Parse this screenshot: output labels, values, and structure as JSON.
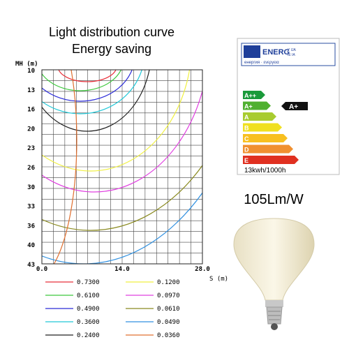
{
  "title": [
    "Light distribution curve",
    "Energy saving"
  ],
  "chart": {
    "y_axis_label": "MH (m)",
    "x_axis_label": "S (m)",
    "y_tick_labels": [
      "10",
      "13",
      "16",
      "20",
      "23",
      "26",
      "30",
      "33",
      "36",
      "40",
      "43"
    ],
    "x_tick_labels": [
      "0.0",
      "14.0",
      "28.0"
    ],
    "legend": [
      {
        "label": "0.7300",
        "color": "#e8303a"
      },
      {
        "label": "0.6100",
        "color": "#3cc83c"
      },
      {
        "label": "0.4900",
        "color": "#2a2ad8"
      },
      {
        "label": "0.3600",
        "color": "#20c8d8"
      },
      {
        "label": "0.2400",
        "color": "#222222"
      },
      {
        "label": "0.1200",
        "color": "#f0f040"
      },
      {
        "label": "0.0970",
        "color": "#e040e0"
      },
      {
        "label": "0.0610",
        "color": "#8a8a20"
      },
      {
        "label": "0.0490",
        "color": "#3090e0"
      },
      {
        "label": "0.0360",
        "color": "#e07030"
      }
    ]
  },
  "energy_label": {
    "header": "ENERG",
    "header_suffix": [
      "Y IJA",
      "IE IA"
    ],
    "subheader": "енергия · ενεργεια",
    "classes": [
      {
        "label": "A++",
        "color": "#1a9a3a"
      },
      {
        "label": "A+",
        "color": "#50b030"
      },
      {
        "label": "A",
        "color": "#a8cc30"
      },
      {
        "label": "B",
        "color": "#f0e020"
      },
      {
        "label": "C",
        "color": "#f8c020"
      },
      {
        "label": "D",
        "color": "#f09030"
      },
      {
        "label": "E",
        "color": "#e03020"
      }
    ],
    "rating": "A+",
    "consumption": "13kwh/1000h"
  },
  "efficacy": "105Lm/W"
}
